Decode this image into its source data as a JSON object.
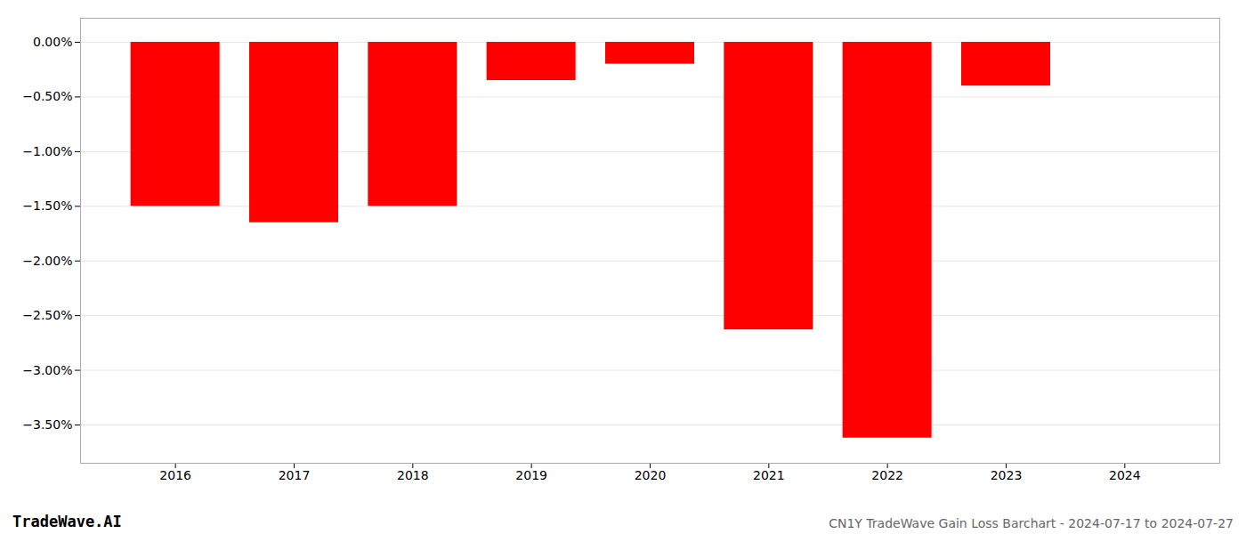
{
  "chart_data": {
    "type": "bar",
    "title": "CN1Y TradeWave Gain Loss Barchart - 2024-07-17 to 2024-07-27",
    "annotations": [
      "TradeWave.AI"
    ],
    "x": [
      2016,
      2017,
      2018,
      2019,
      2020,
      2021,
      2022,
      2023,
      2024
    ],
    "values": [
      -1.5,
      -1.65,
      -1.5,
      -0.35,
      -0.2,
      -2.63,
      -3.62,
      -0.4,
      0.0
    ],
    "color": "#ff0000",
    "xlim": [
      2015.2,
      2024.8
    ],
    "xticks": [
      2016,
      2017,
      2018,
      2019,
      2020,
      2021,
      2022,
      2023,
      2024
    ],
    "ylim": [
      -3.85,
      0.22
    ],
    "yticks": [
      {
        "value": 0.0,
        "label": "0.00%"
      },
      {
        "value": -0.5,
        "label": "−0.50%"
      },
      {
        "value": -1.0,
        "label": "−1.00%"
      },
      {
        "value": -1.5,
        "label": "−1.50%"
      },
      {
        "value": -2.0,
        "label": "−2.00%"
      },
      {
        "value": -2.5,
        "label": "−2.50%"
      },
      {
        "value": -3.0,
        "label": "−3.00%"
      },
      {
        "value": -3.5,
        "label": "−3.50%"
      }
    ],
    "grid": true
  }
}
